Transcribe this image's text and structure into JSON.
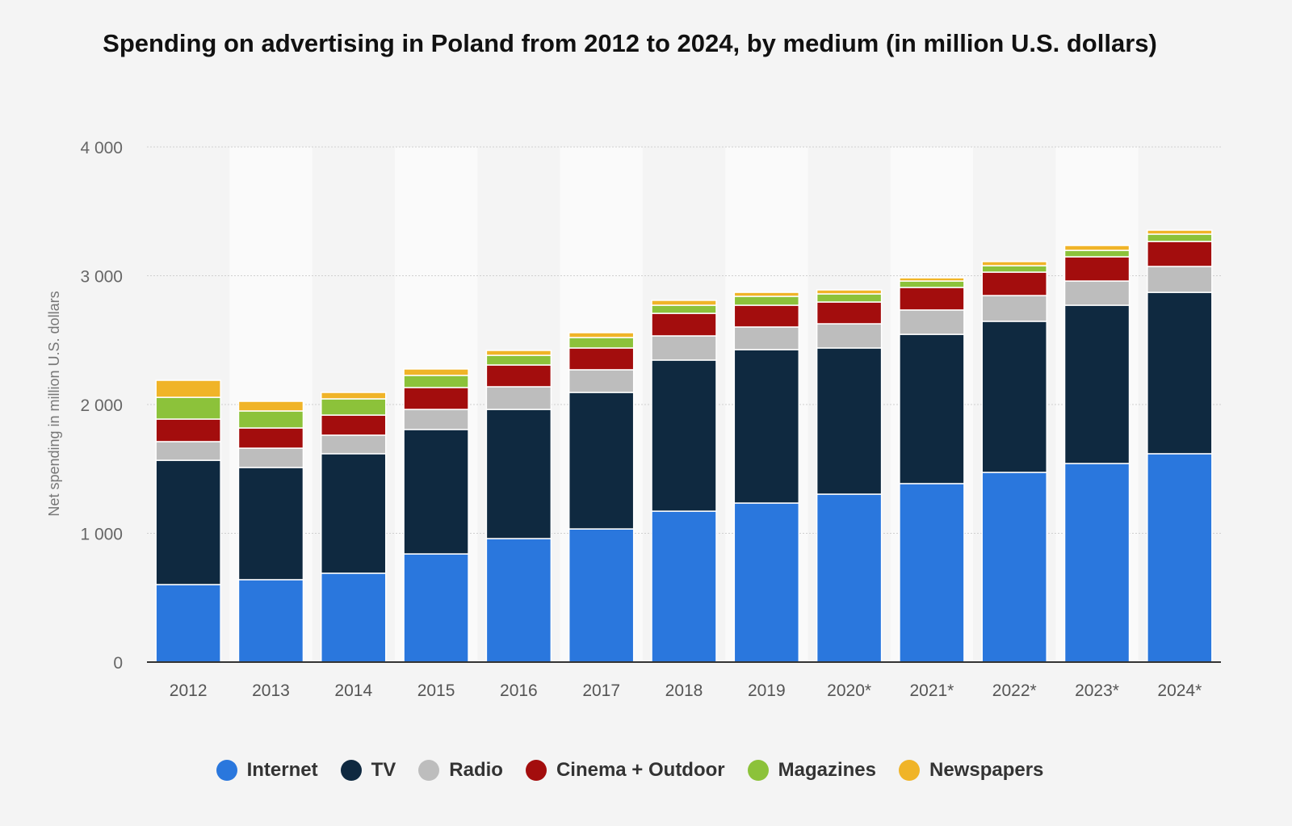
{
  "chart_data": {
    "type": "bar",
    "stacked": true,
    "title": "Spending on advertising in Poland from 2012 to 2024, by medium (in million U.S. dollars)",
    "xlabel": "",
    "ylabel": "Net spending in million U.S. dollars",
    "ylim": [
      0,
      4000
    ],
    "yticks": [
      0,
      1000,
      2000,
      3000,
      4000
    ],
    "ytick_labels": [
      "0",
      "1 000",
      "2 000",
      "3 000",
      "4 000"
    ],
    "grid": true,
    "legend_position": "bottom",
    "categories": [
      "2012",
      "2013",
      "2014",
      "2015",
      "2016",
      "2017",
      "2018",
      "2019",
      "2020*",
      "2021*",
      "2022*",
      "2023*",
      "2024*"
    ],
    "series": [
      {
        "name": "Internet",
        "color": "#2a77dd",
        "values": [
          602,
          640,
          690,
          840,
          959,
          1034,
          1172,
          1235,
          1304,
          1386,
          1473,
          1542,
          1618
        ]
      },
      {
        "name": "TV",
        "color": "#0f2940",
        "values": [
          965,
          871,
          928,
          966,
          1003,
          1060,
          1173,
          1191,
          1135,
          1159,
          1173,
          1229,
          1253
        ]
      },
      {
        "name": "Radio",
        "color": "#bdbdbd",
        "values": [
          145,
          150,
          144,
          156,
          176,
          176,
          188,
          176,
          188,
          189,
          200,
          188,
          201
        ]
      },
      {
        "name": "Cinema + Outdoor",
        "color": "#a30d0d",
        "values": [
          175,
          157,
          156,
          170,
          169,
          169,
          175,
          169,
          169,
          175,
          182,
          188,
          194
        ]
      },
      {
        "name": "Magazines",
        "color": "#8cc23a",
        "values": [
          169,
          132,
          126,
          94,
          75,
          81,
          63,
          69,
          63,
          50,
          50,
          50,
          57
        ]
      },
      {
        "name": "Newspapers",
        "color": "#f0b428",
        "values": [
          132,
          75,
          50,
          50,
          38,
          38,
          38,
          31,
          31,
          25,
          32,
          38,
          31
        ]
      }
    ]
  }
}
